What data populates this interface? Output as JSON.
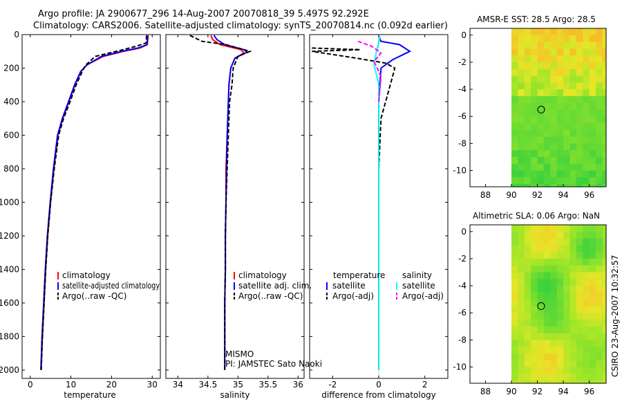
{
  "header": {
    "line1": "Argo profile: JA 2900677_296 14-Aug-2007 20070818_39 5.497S 92.292E",
    "line2": "Climatology: CARS2006. Satellite-adjusted climatology: synTS_20070814.nc (0.092d earlier)"
  },
  "colors": {
    "climatology": "#ff0000",
    "satellite": "#0000ff",
    "argo": "#000000",
    "sal_satellite": "#00ffff",
    "sal_argo": "#ff00ff"
  },
  "chart_data": [
    {
      "id": "temperature",
      "type": "line",
      "xlabel": "temperature",
      "ylabel": "",
      "xlim": [
        -2,
        32
      ],
      "ylim": [
        2050,
        0
      ],
      "xticks": [
        0,
        10,
        20,
        30
      ],
      "yticks": [
        0,
        200,
        400,
        600,
        800,
        1000,
        1200,
        1400,
        1600,
        1800,
        2000
      ],
      "series": [
        {
          "name": "climatology",
          "style": "solid",
          "color": "#ff0000",
          "x": [
            29.0,
            28.8,
            27.0,
            23.0,
            18.0,
            14.0,
            12.5,
            11.0,
            9.5,
            8.0,
            6.8,
            5.8,
            5.0,
            4.3,
            3.8,
            3.4,
            3.0,
            2.7
          ],
          "y": [
            5,
            60,
            80,
            100,
            130,
            180,
            220,
            300,
            400,
            500,
            600,
            800,
            1000,
            1200,
            1400,
            1600,
            1800,
            2000
          ]
        },
        {
          "name": "satellite-adjusted climatology",
          "style": "solid",
          "color": "#0000ff",
          "x": [
            28.9,
            28.7,
            26.5,
            22.5,
            17.5,
            14.0,
            12.4,
            10.9,
            9.4,
            7.9,
            6.7,
            5.7,
            4.9,
            4.2,
            3.7,
            3.3,
            2.9,
            2.6
          ],
          "y": [
            5,
            60,
            80,
            100,
            130,
            180,
            220,
            300,
            400,
            500,
            600,
            800,
            1000,
            1200,
            1400,
            1600,
            1800,
            2000
          ]
        },
        {
          "name": "Argo(..raw -QC)",
          "style": "dash",
          "color": "#000000",
          "x": [
            28.6,
            28.5,
            26.0,
            22.0,
            16.0,
            13.5,
            12.6,
            11.3,
            9.8,
            8.2,
            7.0,
            5.9,
            5.0,
            4.3,
            3.8,
            3.4,
            3.0,
            2.7
          ],
          "y": [
            5,
            50,
            70,
            95,
            130,
            185,
            230,
            300,
            400,
            500,
            600,
            800,
            1000,
            1200,
            1400,
            1600,
            1800,
            2000
          ]
        }
      ],
      "legend": [
        "climatology",
        "satellite-adjusted climatology",
        "Argo(..raw -QC)"
      ]
    },
    {
      "id": "salinity",
      "type": "line",
      "xlabel": "salinity",
      "ylabel": "",
      "xlim": [
        33.8,
        36.1
      ],
      "ylim": [
        2050,
        0
      ],
      "xticks": [
        34,
        34.5,
        35,
        35.5,
        36
      ],
      "yticks": [
        0,
        200,
        400,
        600,
        800,
        1000,
        1200,
        1400,
        1600,
        1800,
        2000
      ],
      "series": [
        {
          "name": "climatology",
          "style": "solid",
          "color": "#ff0000",
          "x": [
            34.55,
            34.58,
            34.7,
            35.05,
            35.1,
            34.95,
            34.88,
            34.85,
            34.84,
            34.83,
            34.82,
            34.8,
            34.8,
            34.79,
            34.79,
            34.78,
            34.78,
            34.78
          ],
          "y": [
            5,
            30,
            60,
            90,
            110,
            140,
            200,
            300,
            400,
            500,
            600,
            800,
            1000,
            1200,
            1400,
            1600,
            1800,
            2000
          ]
        },
        {
          "name": "satellite adj. clim.",
          "style": "solid",
          "color": "#0000ff",
          "x": [
            34.6,
            34.65,
            34.78,
            35.1,
            35.15,
            34.95,
            34.88,
            34.85,
            34.84,
            34.83,
            34.82,
            34.81,
            34.8,
            34.79,
            34.79,
            34.78,
            34.78,
            34.78
          ],
          "y": [
            5,
            30,
            60,
            90,
            105,
            140,
            200,
            300,
            400,
            500,
            600,
            800,
            1000,
            1200,
            1400,
            1600,
            1800,
            2000
          ]
        },
        {
          "name": "Argo(..raw -QC)",
          "style": "dash",
          "color": "#000000",
          "x": [
            34.2,
            34.4,
            34.8,
            35.05,
            35.2,
            35.0,
            34.92,
            34.9,
            34.86,
            34.85,
            34.84,
            34.82,
            34.8,
            34.79,
            34.79,
            34.78,
            34.78,
            34.78
          ],
          "y": [
            5,
            40,
            60,
            85,
            100,
            130,
            200,
            300,
            400,
            500,
            600,
            800,
            1000,
            1200,
            1400,
            1600,
            1800,
            2000
          ]
        }
      ],
      "legend": [
        "climatology",
        "satellite adj. clim.",
        "Argo(..raw -QC)"
      ],
      "annotation": [
        "MISMO",
        "PI: JAMSTEC Sato Naoki"
      ]
    },
    {
      "id": "difference",
      "type": "line",
      "xlabel": "difference from climatology",
      "ylabel": "",
      "xlim": [
        -3,
        3
      ],
      "ylim": [
        2050,
        0
      ],
      "xticks": [
        -2,
        0,
        2
      ],
      "yticks": [
        0,
        200,
        400,
        600,
        800,
        1000,
        1200,
        1400,
        1600,
        1800,
        2000
      ],
      "series": [
        {
          "name": "temperature satellite",
          "style": "solid",
          "color": "#0000ff",
          "x": [
            0.0,
            0.1,
            0.9,
            1.35,
            0.6,
            0.1,
            0.0,
            0.0,
            0.0,
            0.0,
            0.0
          ],
          "y": [
            10,
            40,
            60,
            100,
            150,
            200,
            400,
            800,
            1200,
            1600,
            2000
          ]
        },
        {
          "name": "temperature Argo(-adj)",
          "style": "dash",
          "color": "#000000",
          "x": [
            -2.9,
            -0.8,
            -2.9,
            -1.0,
            0.3,
            0.7,
            0.5,
            0.1,
            0.0,
            0.0
          ],
          "y": [
            80,
            90,
            100,
            140,
            170,
            200,
            300,
            500,
            800,
            1200
          ]
        },
        {
          "name": "salinity satellite",
          "style": "solid",
          "color": "#00ffff",
          "x": [
            0.05,
            0.0,
            -0.1,
            -0.2,
            0.0,
            0.0,
            0.0,
            0.0,
            0.0
          ],
          "y": [
            10,
            50,
            100,
            180,
            300,
            600,
            1000,
            1500,
            2000
          ]
        },
        {
          "name": "salinity Argo(-adj)",
          "style": "dash",
          "color": "#ff00ff",
          "x": [
            -0.9,
            -0.3,
            0.1,
            -0.2,
            0.1,
            0.0
          ],
          "y": [
            40,
            70,
            110,
            160,
            250,
            400
          ]
        }
      ],
      "legend_temperature_title": "temperature",
      "legend_salinity_title": "salinity",
      "legend_temperature": [
        "satellite",
        "Argo(-adj)"
      ],
      "legend_salinity": [
        "satellite",
        "Argo(-adj)"
      ]
    },
    {
      "id": "sst_map",
      "type": "heatmap",
      "title": "AMSR-E SST: 28.5 Argo: 28.5",
      "xlim": [
        86.8,
        97.3
      ],
      "ylim": [
        -11.2,
        0.5
      ],
      "xticks": [
        88,
        90,
        92,
        94,
        96
      ],
      "yticks": [
        0,
        -2,
        -4,
        -6,
        -8,
        -10
      ],
      "data_extent": {
        "lon": [
          90,
          97.3
        ],
        "lat": [
          -11.2,
          0.5
        ]
      },
      "marker": {
        "lon": 92.29,
        "lat": -5.5
      }
    },
    {
      "id": "sla_map",
      "type": "heatmap",
      "title": "Altimetric SLA: 0.06 Argo: NaN",
      "xlim": [
        86.8,
        97.3
      ],
      "ylim": [
        -11.2,
        0.5
      ],
      "xticks": [
        88,
        90,
        92,
        94,
        96
      ],
      "yticks": [
        0,
        -2,
        -4,
        -6,
        -8,
        -10
      ],
      "data_extent": {
        "lon": [
          90,
          97.3
        ],
        "lat": [
          -11.2,
          0.5
        ]
      },
      "marker": {
        "lon": 92.29,
        "lat": -5.5
      }
    }
  ],
  "side_label": "CSIRO 23-Aug-2007 10:32:57"
}
